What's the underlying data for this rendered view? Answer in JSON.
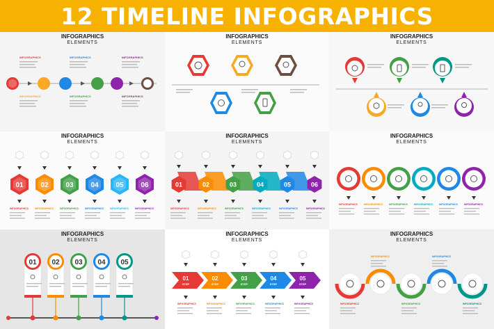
{
  "banner": {
    "title": "12 TIMELINE INFOGRAPHICS",
    "color": "#f7b100"
  },
  "panel_header": {
    "line1": "INFOGRAPHICS",
    "line2": "ELEMENTS"
  },
  "small_label": "INFOGRAPHICS",
  "numbers_six": [
    "01",
    "02",
    "03",
    "04",
    "05",
    "06"
  ],
  "numbers_five": [
    "01",
    "02",
    "03",
    "04",
    "05"
  ],
  "step_word": "STEP",
  "palette": [
    "#e53935",
    "#f9a825",
    "#43a047",
    "#1e88e5",
    "#8e24aa",
    "#009688"
  ],
  "icons": [
    "globe-icon",
    "lightbulb-icon",
    "award-icon",
    "alarm-clock-icon",
    "smartphone-icon",
    "tablet-icon",
    "document-icon",
    "location-pin-icon"
  ]
}
